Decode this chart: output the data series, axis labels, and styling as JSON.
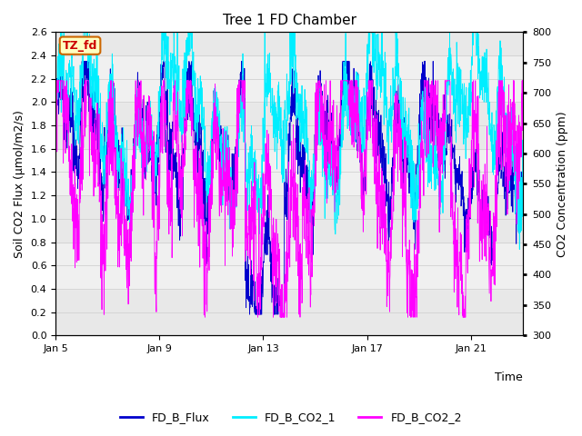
{
  "title": "Tree 1 FD Chamber",
  "xlabel": "Time",
  "ylabel_left": "Soil CO2 Flux (μmol/m2/s)",
  "ylabel_right": "CO2 Concentration (ppm)",
  "ylim_left": [
    0.0,
    2.6
  ],
  "ylim_right": [
    300,
    800
  ],
  "yticks_left": [
    0.0,
    0.2,
    0.4,
    0.6,
    0.8,
    1.0,
    1.2,
    1.4,
    1.6,
    1.8,
    2.0,
    2.2,
    2.4,
    2.6
  ],
  "yticks_right": [
    300,
    350,
    400,
    450,
    500,
    550,
    600,
    650,
    700,
    750,
    800
  ],
  "xtick_days": [
    5,
    9,
    13,
    17,
    21
  ],
  "xtick_labels": [
    "Jan 5",
    "Jan 9",
    "Jan 13",
    "Jan 17",
    "Jan 21"
  ],
  "series": {
    "FD_B_Flux": {
      "color": "#0000CC",
      "lw": 0.6
    },
    "FD_B_CO2_1": {
      "color": "#00EEFF",
      "lw": 0.6
    },
    "FD_B_CO2_2": {
      "color": "#FF00FF",
      "lw": 0.6
    }
  },
  "legend_label": "TZ_fd",
  "legend_box_color": "#FFFFC0",
  "legend_box_edge": "#CC6600",
  "legend_text_color": "#CC0000",
  "background_color": "#FFFFFF",
  "plot_bg_color": "#F0F0F0",
  "stripe_colors": [
    "#E8E8E8",
    "#F0F0F0"
  ],
  "grid_color": "#CCCCCC",
  "seed": 42,
  "n_points": 2000
}
